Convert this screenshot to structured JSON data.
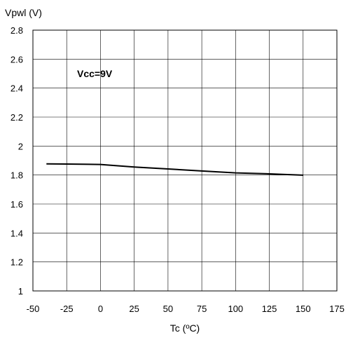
{
  "chart_data": {
    "type": "line",
    "title": "",
    "xlabel": "Tc (ºC)",
    "ylabel": "Vpwl (V)",
    "xlim": [
      -50,
      175
    ],
    "ylim": [
      1,
      2.8
    ],
    "xticks": [
      "-50",
      "-25",
      "0",
      "25",
      "50",
      "75",
      "100",
      "125",
      "150",
      "175"
    ],
    "yticks": [
      "1",
      "1.2",
      "1.4",
      "1.6",
      "1.8",
      "2",
      "2.2",
      "2.4",
      "2.6",
      "2.8"
    ],
    "grid": true,
    "annotation": "Vcc=9V",
    "series": [
      {
        "x": [
          -40,
          -25,
          0,
          25,
          50,
          75,
          100,
          125,
          150
        ],
        "y": [
          1.877,
          1.876,
          1.873,
          1.855,
          1.842,
          1.828,
          1.815,
          1.808,
          1.799
        ]
      }
    ],
    "line_color": "#000000"
  }
}
